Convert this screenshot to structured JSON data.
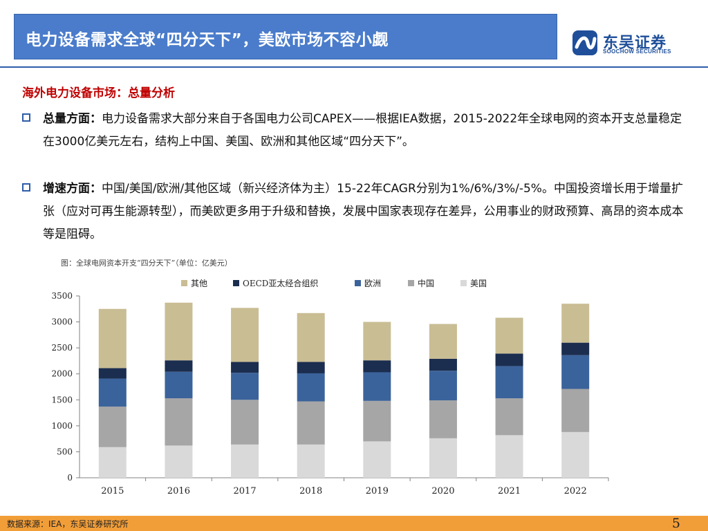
{
  "header": {
    "title": "电力设备需求全球“四分天下”，美欧市场不容小觑",
    "logo_cn": "东吴证券",
    "logo_en": "SOOCHOW SECURITIES",
    "logo_icon": "soochow-logo-icon"
  },
  "section": {
    "heading": "海外电力设备市场：总量分析"
  },
  "bullets": [
    {
      "lead": "总量方面：",
      "text": "电力设备需求大部分来自于各国电力公司CAPEX——根据IEA数据，2015-2022年全球电网的资本开支总量稳定在3000亿美元左右，结构上中国、美国、欧洲和其他区域“四分天下”。"
    },
    {
      "lead": "增速方面：",
      "text": "中国/美国/欧洲/其他区域（新兴经济体为主）15-22年CAGR分别为1%/6%/3%/-5%。中国投资增长用于增量扩张（应对可再生能源转型），而美欧更多用于升级和替换，发展中国家表现存在差异，公用事业的财政预算、高昂的资本成本等是阻碍。"
    }
  ],
  "chart_note": "图：全球电网资本开支“四分天下”（单位：亿美元）",
  "chart_data": {
    "type": "bar",
    "stacked": true,
    "title": "全球电网资本开支“四分天下”（单位：亿美元）",
    "categories": [
      "2015",
      "2016",
      "2017",
      "2018",
      "2019",
      "2020",
      "2021",
      "2022"
    ],
    "ylim": [
      0,
      3500
    ],
    "yticks": [
      "0",
      "500",
      "1000",
      "1500",
      "2000",
      "2500",
      "3000",
      "3500"
    ],
    "legend_position": "top",
    "series": [
      {
        "name": "美国",
        "color": "#d9d9d9",
        "values": [
          590,
          620,
          640,
          640,
          700,
          760,
          820,
          880
        ]
      },
      {
        "name": "中国",
        "color": "#a6a6a6",
        "values": [
          780,
          910,
          860,
          830,
          780,
          730,
          710,
          830
        ]
      },
      {
        "name": "欧洲",
        "color": "#3b639b",
        "values": [
          540,
          510,
          520,
          540,
          550,
          570,
          620,
          650
        ]
      },
      {
        "name": "OECD亚太经合组织",
        "color": "#1b2e4f",
        "values": [
          200,
          220,
          210,
          220,
          230,
          230,
          240,
          240
        ]
      },
      {
        "name": "其他",
        "color": "#c9bd94",
        "values": [
          1140,
          1110,
          1040,
          940,
          740,
          670,
          690,
          750
        ]
      }
    ],
    "legend_order": [
      "其他",
      "OECD亚太经合组织",
      "欧洲",
      "中国",
      "美国"
    ]
  },
  "footer": {
    "source": "数据来源：IEA，东吴证券研究所",
    "page": "5"
  }
}
